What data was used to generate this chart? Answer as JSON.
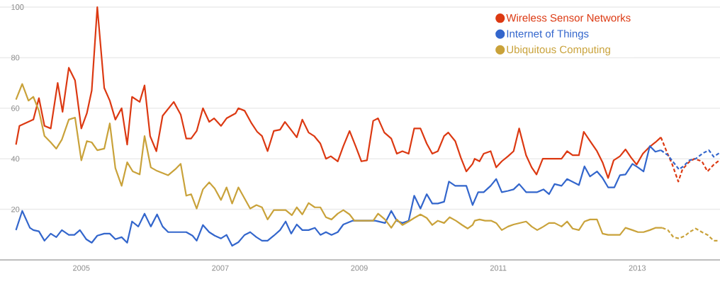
{
  "chart_data": {
    "type": "line",
    "xlim": [
      2003.83,
      2014.19
    ],
    "ylim": [
      0,
      100
    ],
    "xticks": [
      2005,
      2007,
      2009,
      2011,
      2013
    ],
    "yticks": [
      {
        "value": 0,
        "label": null
      },
      20,
      40,
      60,
      80,
      100
    ],
    "grid": "y",
    "legend": "top right",
    "marker": "none",
    "series": [
      {
        "name": "Wireless Sensor Networks",
        "color": "#dc3912",
        "x": [
          2004.06,
          2004.11,
          2004.31,
          2004.39,
          2004.47,
          2004.56,
          2004.66,
          2004.73,
          2004.82,
          2004.91,
          2005.0,
          2005.08,
          2005.15,
          2005.23,
          2005.33,
          2005.41,
          2005.49,
          2005.58,
          2005.66,
          2005.73,
          2005.84,
          2005.91,
          2005.99,
          2006.08,
          2006.17,
          2006.33,
          2006.43,
          2006.51,
          2006.58,
          2006.66,
          2006.75,
          2006.84,
          2006.91,
          2007.01,
          2007.09,
          2007.22,
          2007.26,
          2007.35,
          2007.45,
          2007.53,
          2007.6,
          2007.68,
          2007.77,
          2007.86,
          2007.93,
          2008.03,
          2008.1,
          2008.18,
          2008.27,
          2008.35,
          2008.44,
          2008.52,
          2008.59,
          2008.69,
          2008.77,
          2008.86,
          2008.95,
          2009.03,
          2009.11,
          2009.2,
          2009.27,
          2009.36,
          2009.46,
          2009.54,
          2009.62,
          2009.71,
          2009.79,
          2009.88,
          2009.97,
          2010.05,
          2010.13,
          2010.22,
          2010.28,
          2010.38,
          2010.46,
          2010.54,
          2010.63,
          2010.66,
          2010.73,
          2010.79,
          2010.89,
          2010.97,
          2011.05,
          2011.14,
          2011.22,
          2011.3,
          2011.4,
          2011.48,
          2011.55,
          2011.64,
          2011.81,
          2011.91,
          2011.99,
          2012.07,
          2012.16,
          2012.23,
          2012.32,
          2012.42,
          2012.5,
          2012.58,
          2012.66,
          2012.75,
          2012.83,
          2012.91,
          2012.99,
          2013.08,
          2013.18,
          2013.26,
          2013.34
        ],
        "values": [
          45.6,
          53,
          55.5,
          64,
          53,
          52,
          70,
          58.6,
          76,
          71,
          52,
          58,
          67,
          100,
          68,
          63,
          55.5,
          60,
          45.6,
          64.5,
          62.5,
          69,
          49,
          43,
          57,
          62.5,
          57.5,
          48,
          48,
          51,
          60,
          54.6,
          56,
          53,
          56,
          58,
          60,
          59,
          54,
          50.7,
          49,
          43,
          51,
          51.5,
          54.6,
          51,
          48.5,
          55.5,
          50.4,
          49,
          46,
          40,
          41,
          39,
          45,
          51,
          44.8,
          39,
          39.4,
          55,
          56,
          50.4,
          48,
          42,
          43,
          42,
          52,
          52,
          46,
          42,
          43,
          49,
          50.4,
          47,
          40.5,
          35,
          38,
          40,
          39,
          42,
          43,
          36.6,
          39,
          41,
          43,
          52,
          41.4,
          36.6,
          33.8,
          40,
          40,
          40,
          43,
          41.4,
          41.4,
          50.7,
          47,
          43,
          38.6,
          32.4,
          39.4,
          41,
          43.7,
          40.5,
          37.7,
          42,
          44.8,
          46.5,
          48.5
        ]
      },
      {
        "color": "#dc3912",
        "line_style": "dashed",
        "x": [
          2013.34,
          2013.42,
          2013.5,
          2013.59,
          2013.65,
          2013.74,
          2013.82,
          2013.93,
          2014.01,
          2014.1,
          2014.18
        ],
        "values": [
          48.5,
          43,
          38,
          31,
          35.8,
          38.6,
          40,
          39,
          35,
          37.7,
          39.4
        ]
      },
      {
        "name": "Internet of Things",
        "color": "#3366cc",
        "x": [
          2004.06,
          2004.15,
          2004.26,
          2004.31,
          2004.39,
          2004.47,
          2004.56,
          2004.64,
          2004.72,
          2004.82,
          2004.9,
          2004.98,
          2005.07,
          2005.15,
          2005.23,
          2005.33,
          2005.41,
          2005.49,
          2005.58,
          2005.66,
          2005.73,
          2005.82,
          2005.91,
          2006.0,
          2006.09,
          2006.17,
          2006.25,
          2006.51,
          2006.6,
          2006.66,
          2006.75,
          2006.84,
          2006.92,
          2007.01,
          2007.09,
          2007.17,
          2007.26,
          2007.35,
          2007.43,
          2007.52,
          2007.6,
          2007.68,
          2007.77,
          2007.86,
          2007.94,
          2008.02,
          2008.1,
          2008.18,
          2008.27,
          2008.36,
          2008.44,
          2008.52,
          2008.6,
          2008.69,
          2008.77,
          2008.9,
          2009.23,
          2009.37,
          2009.46,
          2009.54,
          2009.62,
          2009.71,
          2009.79,
          2009.88,
          2009.97,
          2010.05,
          2010.13,
          2010.22,
          2010.29,
          2010.38,
          2010.54,
          2010.63,
          2010.71,
          2010.79,
          2010.89,
          2010.97,
          2011.05,
          2011.14,
          2011.22,
          2011.3,
          2011.4,
          2011.56,
          2011.65,
          2011.73,
          2011.81,
          2011.91,
          2011.99,
          2012.16,
          2012.24,
          2012.32,
          2012.42,
          2012.5,
          2012.58,
          2012.67,
          2012.75,
          2012.83,
          2012.93,
          2013.01,
          2013.09,
          2013.18,
          2013.26,
          2013.34
        ],
        "values": [
          11.8,
          19.4,
          12.7,
          11.8,
          11.3,
          7.6,
          10.4,
          9,
          11.8,
          9.9,
          9.9,
          11.8,
          8.2,
          6.8,
          9.6,
          10.4,
          10.4,
          8.2,
          9,
          6.8,
          15.2,
          13.2,
          18.3,
          13.2,
          18,
          13.2,
          11,
          11,
          9.6,
          7.6,
          13.8,
          11,
          9.6,
          8.5,
          9.9,
          5.6,
          7,
          9.9,
          11,
          9,
          7.6,
          7.6,
          9.6,
          11.8,
          15.2,
          10.4,
          14,
          11.8,
          11.8,
          12.7,
          9.9,
          11,
          9.9,
          11,
          14,
          15.5,
          15.5,
          14.6,
          19.4,
          15.5,
          14.6,
          15.5,
          25.4,
          20.3,
          26,
          22.3,
          22.3,
          23,
          31,
          29.3,
          29.3,
          21.7,
          26.8,
          26.8,
          29.3,
          32,
          26.8,
          27.3,
          27.9,
          30,
          26.8,
          26.8,
          27.9,
          26,
          30,
          29.3,
          32,
          29.6,
          37,
          33,
          35,
          32.4,
          28.7,
          28.7,
          33.5,
          33.8,
          38,
          36.6,
          35,
          45,
          42.8,
          43.4
        ]
      },
      {
        "color": "#3366cc",
        "line_style": "dashed",
        "x": [
          2013.34,
          2013.44,
          2013.52,
          2013.6,
          2013.67,
          2013.75,
          2013.84,
          2013.95,
          2014.03,
          2014.1,
          2014.18
        ],
        "values": [
          43.4,
          41.4,
          38.6,
          35.8,
          37.2,
          39.4,
          40,
          42.3,
          43.4,
          40.8,
          42.3
        ]
      },
      {
        "name": "Ubiquitous Computing",
        "color": "#c9a23a",
        "x": [
          2004.06,
          2004.15,
          2004.24,
          2004.31,
          2004.39,
          2004.47,
          2004.56,
          2004.64,
          2004.72,
          2004.82,
          2004.91,
          2005.0,
          2005.08,
          2005.15,
          2005.23,
          2005.33,
          2005.41,
          2005.49,
          2005.58,
          2005.66,
          2005.74,
          2005.84,
          2005.91,
          2006.0,
          2006.09,
          2006.25,
          2006.35,
          2006.43,
          2006.51,
          2006.58,
          2006.66,
          2006.75,
          2006.84,
          2006.92,
          2007.01,
          2007.09,
          2007.17,
          2007.26,
          2007.43,
          2007.52,
          2007.6,
          2007.68,
          2007.77,
          2007.94,
          2008.03,
          2008.1,
          2008.18,
          2008.27,
          2008.36,
          2008.44,
          2008.52,
          2008.6,
          2008.69,
          2008.77,
          2008.86,
          2008.93,
          2009.2,
          2009.27,
          2009.37,
          2009.46,
          2009.54,
          2009.62,
          2009.71,
          2009.79,
          2009.88,
          2009.97,
          2010.05,
          2010.13,
          2010.22,
          2010.3,
          2010.39,
          2010.48,
          2010.56,
          2010.63,
          2010.66,
          2010.73,
          2010.81,
          2010.9,
          2010.97,
          2011.05,
          2011.14,
          2011.22,
          2011.4,
          2011.48,
          2011.56,
          2011.65,
          2011.73,
          2011.81,
          2011.91,
          2011.99,
          2012.07,
          2012.16,
          2012.24,
          2012.32,
          2012.42,
          2012.5,
          2012.58,
          2012.67,
          2012.75,
          2012.83,
          2012.93,
          2013.01,
          2013.09,
          2013.18,
          2013.26,
          2013.36
        ],
        "values": [
          63.4,
          69.6,
          63,
          64.5,
          59,
          49,
          46.5,
          44,
          47.6,
          55.5,
          56.3,
          39.4,
          47,
          46.5,
          43.4,
          44,
          54,
          36.3,
          29.3,
          38.6,
          35,
          33.8,
          49,
          36.6,
          35.2,
          33.5,
          35.8,
          38,
          25.4,
          26,
          20.3,
          27.9,
          30.7,
          28.2,
          23.7,
          28.7,
          22.3,
          28.7,
          20.3,
          21.7,
          20.8,
          16,
          19.7,
          19.7,
          17.7,
          20.8,
          18,
          22.5,
          20.8,
          20.8,
          16.9,
          16,
          18.3,
          19.7,
          18,
          15.5,
          15.5,
          18.3,
          16,
          12.7,
          16,
          13.8,
          15.2,
          16.6,
          18,
          16.6,
          13.8,
          15.5,
          14.6,
          16.9,
          15.5,
          13.8,
          12.4,
          13.8,
          15.5,
          16,
          15.5,
          15.5,
          14.6,
          11.8,
          13.2,
          14,
          15.2,
          13.2,
          11.8,
          13.2,
          14.6,
          14.6,
          13.2,
          15.2,
          12.4,
          11.8,
          15.2,
          16,
          16,
          10.4,
          9.9,
          9.9,
          9.9,
          12.7,
          11.8,
          11,
          11,
          11.8,
          12.7,
          12.7
        ]
      },
      {
        "color": "#c9a23a",
        "line_style": "dashed",
        "x": [
          2013.36,
          2013.44,
          2013.52,
          2013.6,
          2013.69,
          2013.75,
          2013.84,
          2013.93,
          2014.01,
          2014.1,
          2014.18
        ],
        "values": [
          12.7,
          11.8,
          9,
          8.5,
          9.6,
          11,
          12.4,
          11,
          9.9,
          7.6,
          7.6
        ]
      }
    ]
  }
}
